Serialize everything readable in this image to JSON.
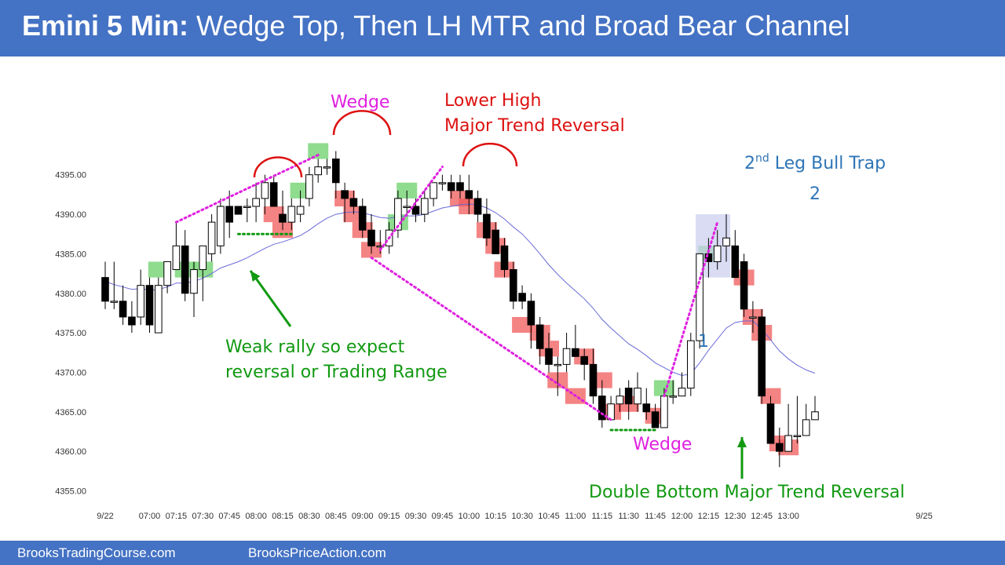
{
  "header": {
    "title_bold": "Emini 5 Min:",
    "title_rest": " Wedge Top, Then LH MTR and Broad Bear Channel",
    "bg_color": "#4472c4"
  },
  "footer": {
    "left": "BrooksTradingCourse.com",
    "right": "BrooksPriceAction.com"
  },
  "chart_data": {
    "type": "candlestick",
    "title": "",
    "xlabel": "",
    "ylabel": "",
    "ylim": [
      4354,
      4400
    ],
    "y_ticks": [
      "4355.00",
      "4360.00",
      "4365.00",
      "4370.00",
      "4375.00",
      "4380.00",
      "4385.00",
      "4390.00",
      "4395.00"
    ],
    "x_ticks": [
      {
        "label": "9/22",
        "bar": 0
      },
      {
        "label": "07:00",
        "bar": 5
      },
      {
        "label": "07:15",
        "bar": 8
      },
      {
        "label": "07:30",
        "bar": 11
      },
      {
        "label": "07:45",
        "bar": 14
      },
      {
        "label": "08:00",
        "bar": 17
      },
      {
        "label": "08:15",
        "bar": 20
      },
      {
        "label": "08:30",
        "bar": 23
      },
      {
        "label": "08:45",
        "bar": 26
      },
      {
        "label": "09:00",
        "bar": 29
      },
      {
        "label": "09:15",
        "bar": 32
      },
      {
        "label": "09:30",
        "bar": 35
      },
      {
        "label": "09:45",
        "bar": 38
      },
      {
        "label": "10:00",
        "bar": 41
      },
      {
        "label": "10:15",
        "bar": 44
      },
      {
        "label": "10:30",
        "bar": 47
      },
      {
        "label": "10:45",
        "bar": 50
      },
      {
        "label": "11:00",
        "bar": 53
      },
      {
        "label": "11:15",
        "bar": 56
      },
      {
        "label": "11:30",
        "bar": 59
      },
      {
        "label": "11:45",
        "bar": 62
      },
      {
        "label": "12:00",
        "bar": 65
      },
      {
        "label": "12:15",
        "bar": 68
      },
      {
        "label": "12:30",
        "bar": 71
      },
      {
        "label": "12:45",
        "bar": 74
      },
      {
        "label": "13:00",
        "bar": 77
      },
      {
        "label": "9/25",
        "bar": 80
      }
    ],
    "bars": [
      [
        4382,
        4384,
        4378,
        4379
      ],
      [
        4379,
        4384,
        4378,
        4379
      ],
      [
        4379,
        4381,
        4376,
        4377
      ],
      [
        4377,
        4379,
        4375,
        4376
      ],
      [
        4377,
        4383,
        4376,
        4381
      ],
      [
        4381,
        4382,
        4375,
        4376
      ],
      [
        4375,
        4382,
        4375,
        4381
      ],
      [
        4381,
        4384,
        4380,
        4384
      ],
      [
        4383,
        4389,
        4383,
        4386
      ],
      [
        4386,
        4388,
        4379,
        4380
      ],
      [
        4380,
        4384,
        4377,
        4383
      ],
      [
        4383,
        4386,
        4379,
        4386
      ],
      [
        4385,
        4390,
        4384,
        4389
      ],
      [
        4386,
        4392,
        4385,
        4391
      ],
      [
        4391,
        4393,
        4387,
        4389
      ],
      [
        4391,
        4391,
        4390,
        4390
      ],
      [
        4391,
        4392,
        4389,
        4391
      ],
      [
        4391,
        4394,
        4389,
        4392
      ],
      [
        4392,
        4395,
        4390,
        4394
      ],
      [
        4394,
        4395,
        4391,
        4391
      ],
      [
        4390,
        4393,
        4388,
        4389
      ],
      [
        4389,
        4392,
        4388,
        4391
      ],
      [
        4390,
        4393,
        4389,
        4391
      ],
      [
        4392,
        4396,
        4391,
        4395
      ],
      [
        4395,
        4397,
        4394,
        4396
      ],
      [
        4396,
        4397,
        4395,
        4396
      ],
      [
        4397,
        4398,
        4392,
        4394
      ],
      [
        4393,
        4394,
        4389,
        4392
      ],
      [
        4392,
        4393,
        4390,
        4391
      ],
      [
        4391,
        4392,
        4387,
        4388
      ],
      [
        4388,
        4390,
        4385,
        4386
      ],
      [
        4386,
        4388,
        4385,
        4386
      ],
      [
        4386,
        4389,
        4385,
        4388
      ],
      [
        4388,
        4393,
        4387,
        4392
      ],
      [
        4391,
        4393,
        4390,
        4391
      ],
      [
        4391,
        4392,
        4389,
        4390
      ],
      [
        4390,
        4393,
        4389,
        4392
      ],
      [
        4392,
        4394,
        4391,
        4394
      ],
      [
        4394,
        4395,
        4393,
        4394
      ],
      [
        4394,
        4395,
        4392,
        4393
      ],
      [
        4394,
        4395,
        4392,
        4393
      ],
      [
        4393,
        4395,
        4390,
        4392
      ],
      [
        4392,
        4393,
        4389,
        4390
      ],
      [
        4390,
        4392,
        4386,
        4387
      ],
      [
        4388,
        4389,
        4385,
        4385
      ],
      [
        4386,
        4387,
        4382,
        4383
      ],
      [
        4383,
        4384,
        4378,
        4379
      ],
      [
        4380,
        4381,
        4378,
        4379
      ],
      [
        4379,
        4380,
        4373,
        4376
      ],
      [
        4376,
        4377,
        4371,
        4373
      ],
      [
        4373,
        4375,
        4370,
        4371
      ],
      [
        4371,
        4372,
        4367,
        4371
      ],
      [
        4371,
        4375,
        4370,
        4373
      ],
      [
        4373,
        4376,
        4372,
        4372
      ],
      [
        4372,
        4373,
        4369,
        4371
      ],
      [
        4371,
        4373,
        4366,
        4367
      ],
      [
        4367,
        4369,
        4363,
        4364
      ],
      [
        4364,
        4367,
        4364,
        4366
      ],
      [
        4366,
        4368,
        4365,
        4367
      ],
      [
        4368,
        4369,
        4364,
        4366
      ],
      [
        4366,
        4370,
        4365,
        4368
      ],
      [
        4366,
        4368,
        4364,
        4365
      ],
      [
        4365,
        4366,
        4363,
        4363
      ],
      [
        4363,
        4368,
        4363,
        4367
      ],
      [
        4367,
        4369,
        4366,
        4367
      ],
      [
        4367,
        4370,
        4367,
        4368
      ],
      [
        4368,
        4375,
        4367,
        4374
      ],
      [
        4374,
        4385,
        4373,
        4385
      ],
      [
        4385,
        4387,
        4382,
        4384
      ],
      [
        4384,
        4388,
        4383,
        4386
      ],
      [
        4386,
        4390,
        4384,
        4387
      ],
      [
        4386,
        4388,
        4382,
        4382
      ],
      [
        4384,
        4385,
        4377,
        4378
      ],
      [
        4377,
        4379,
        4375,
        4377
      ],
      [
        4377,
        4378,
        4366,
        4367
      ],
      [
        4366,
        4367,
        4361,
        4361
      ],
      [
        4361,
        4363,
        4358,
        4360
      ],
      [
        4360,
        4366,
        4360,
        4362
      ],
      [
        4362,
        4367,
        4361,
        4362
      ],
      [
        4362,
        4366,
        4362,
        4364
      ],
      [
        4364,
        4367,
        4364,
        4365
      ]
    ],
    "ema": [
      4381.5,
      4381.1,
      4380.8,
      4380.5,
      4380.6,
      4380.4,
      4380.5,
      4380.8,
      4381.3,
      4381.3,
      4381.5,
      4381.9,
      4382.5,
      4383.2,
      4383.6,
      4384.0,
      4384.5,
      4385.1,
      4385.7,
      4386.2,
      4386.5,
      4386.9,
      4387.3,
      4388.0,
      4388.8,
      4389.5,
      4390.0,
      4390.2,
      4390.3,
      4390.2,
      4389.9,
      4389.6,
      4389.5,
      4389.7,
      4389.8,
      4389.8,
      4390.0,
      4390.4,
      4390.8,
      4391.0,
      4391.2,
      4391.3,
      4391.2,
      4390.8,
      4390.2,
      4389.4,
      4388.4,
      4387.5,
      4386.3,
      4385.0,
      4383.6,
      4382.4,
      4381.3,
      4380.3,
      4379.3,
      4378.1,
      4376.7,
      4375.6,
      4374.6,
      4373.6,
      4372.9,
      4372.1,
      4371.2,
      4370.6,
      4370.0,
      4369.6,
      4369.8,
      4371.2,
      4372.8,
      4374.2,
      4375.6,
      4376.3,
      4376.5,
      4376.5,
      4375.5,
      4374.1,
      4372.7,
      4371.7,
      4370.9,
      4370.3,
      4369.9
    ],
    "signal_boxes": [
      {
        "bar": 6,
        "low": 4382,
        "high": 4384,
        "color": "green"
      },
      {
        "bar": 9,
        "low": 4382,
        "high": 4384,
        "color": "green"
      },
      {
        "bar": 11,
        "low": 4382,
        "high": 4384,
        "color": "green"
      },
      {
        "bar": 19,
        "low": 4389,
        "high": 4391,
        "color": "red"
      },
      {
        "bar": 20,
        "low": 4387,
        "high": 4389,
        "color": "red"
      },
      {
        "bar": 22,
        "low": 4392,
        "high": 4394,
        "color": "green"
      },
      {
        "bar": 24,
        "low": 4397,
        "high": 4399,
        "color": "green"
      },
      {
        "bar": 27,
        "low": 4391,
        "high": 4393,
        "color": "red"
      },
      {
        "bar": 28,
        "low": 4389,
        "high": 4391,
        "color": "red"
      },
      {
        "bar": 29,
        "low": 4387,
        "high": 4389,
        "color": "red"
      },
      {
        "bar": 30,
        "low": 4384.5,
        "high": 4386.5,
        "color": "red"
      },
      {
        "bar": 33,
        "low": 4388,
        "high": 4390,
        "color": "green"
      },
      {
        "bar": 34,
        "low": 4392,
        "high": 4394,
        "color": "green"
      },
      {
        "bar": 40,
        "low": 4391,
        "high": 4393,
        "color": "red"
      },
      {
        "bar": 41,
        "low": 4390,
        "high": 4392,
        "color": "red"
      },
      {
        "bar": 43,
        "low": 4387,
        "high": 4389,
        "color": "red"
      },
      {
        "bar": 44,
        "low": 4385,
        "high": 4387,
        "color": "red"
      },
      {
        "bar": 45,
        "low": 4382,
        "high": 4384,
        "color": "red"
      },
      {
        "bar": 47,
        "low": 4375,
        "high": 4377,
        "color": "red"
      },
      {
        "bar": 49,
        "low": 4374,
        "high": 4376,
        "color": "red"
      },
      {
        "bar": 50,
        "low": 4372,
        "high": 4374,
        "color": "red"
      },
      {
        "bar": 51,
        "low": 4368,
        "high": 4370,
        "color": "red"
      },
      {
        "bar": 53,
        "low": 4366,
        "high": 4368,
        "color": "red"
      },
      {
        "bar": 54,
        "low": 4371,
        "high": 4373,
        "color": "red"
      },
      {
        "bar": 56,
        "low": 4368,
        "high": 4370,
        "color": "red"
      },
      {
        "bar": 57,
        "low": 4364,
        "high": 4366,
        "color": "red"
      },
      {
        "bar": 59,
        "low": 4365,
        "high": 4367,
        "color": "red"
      },
      {
        "bar": 62,
        "low": 4363.5,
        "high": 4365.5,
        "color": "red"
      },
      {
        "bar": 63,
        "low": 4367,
        "high": 4369,
        "color": "green"
      },
      {
        "bar": 68,
        "low": 4384,
        "high": 4386,
        "color": "green"
      },
      {
        "bar": 72,
        "low": 4381,
        "high": 4383,
        "color": "red"
      },
      {
        "bar": 73,
        "low": 4376,
        "high": 4378,
        "color": "red"
      },
      {
        "bar": 74,
        "low": 4374,
        "high": 4376,
        "color": "red"
      },
      {
        "bar": 75,
        "low": 4366,
        "high": 4368,
        "color": "red"
      },
      {
        "bar": 76,
        "low": 4360,
        "high": 4362,
        "color": "red"
      },
      {
        "bar": 77,
        "low": 4359.5,
        "high": 4361.5,
        "color": "red"
      }
    ],
    "annotations": {
      "wedge_top": "Wedge",
      "lower_high_1": "Lower High",
      "lower_high_2": "Major Trend Reversal",
      "bull_trap_pre": "2",
      "bull_trap_sup": "nd",
      "bull_trap_post": " Leg Bull Trap",
      "leg2": "2",
      "leg1": "1",
      "weak_rally_1": "Weak rally so expect",
      "weak_rally_2": "reversal or Trading Range",
      "wedge_bottom": "Wedge",
      "double_bottom": "Double Bottom Major Trend Reversal"
    },
    "colors": {
      "magenta": "#e020e0",
      "red": "#dd1111",
      "green": "#119911",
      "blue": "#2e75b6",
      "ema": "#6a6ad8",
      "green_box": "#6ad06a",
      "red_box": "#f05a5a",
      "trap_box": "#c9cdee"
    }
  }
}
